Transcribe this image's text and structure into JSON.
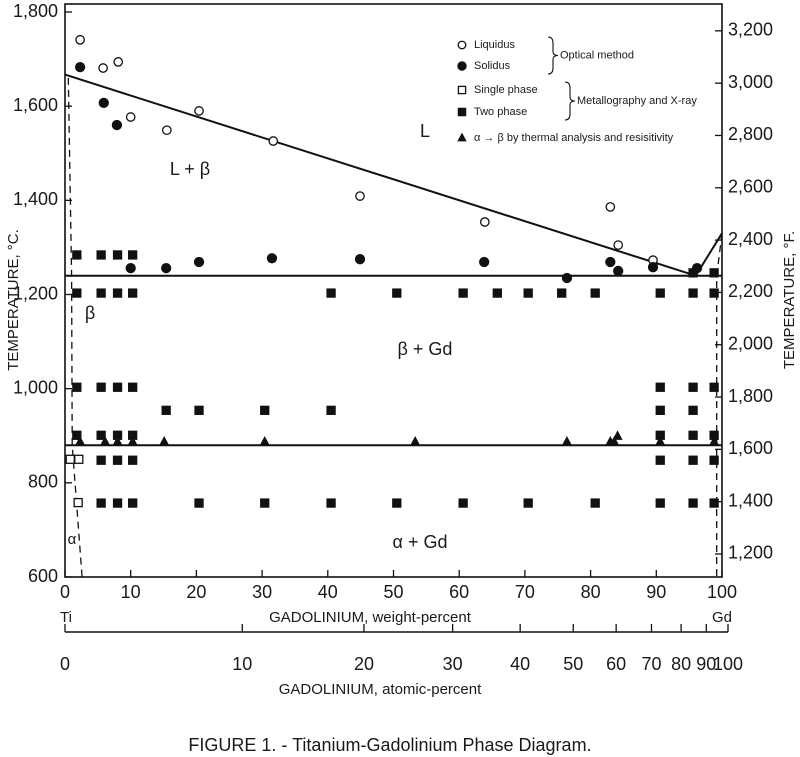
{
  "chart_data": {
    "type": "scatter",
    "title": "FIGURE 1. - Titanium-Gadolinium Phase Diagram.",
    "xlabel": "GADOLINIUM, weight-percent",
    "x2label": "GADOLINIUM, atomic-percent",
    "ylabel": "TEMPERATURE, °C.",
    "y2label": "TEMPERATURE, °F.",
    "x_end_labels": [
      "Ti",
      "Gd"
    ],
    "xlim": [
      0,
      100
    ],
    "xticks": [
      0,
      10,
      20,
      30,
      40,
      50,
      60,
      70,
      80,
      90,
      100
    ],
    "x2ticks": [
      0,
      10,
      20,
      30,
      40,
      50,
      60,
      70,
      80,
      90,
      100
    ],
    "ylim": [
      600,
      1800
    ],
    "yticks": [
      600,
      800,
      {
        "value": 1000,
        "label": "1,000"
      },
      {
        "value": 1200,
        "label": "1,200"
      },
      {
        "value": 1400,
        "label": "1,400"
      },
      {
        "value": 1600,
        "label": "1,600"
      },
      {
        "value": 1800,
        "label": "1,800"
      }
    ],
    "y2lim": [
      1112,
      3272
    ],
    "y2ticks": [
      {
        "value": 1200,
        "label": "1,200"
      },
      {
        "value": 1400,
        "label": "1,400"
      },
      {
        "value": 1600,
        "label": "1,600"
      },
      {
        "value": 1800,
        "label": "1,800"
      },
      {
        "value": 2000,
        "label": "2,000"
      },
      {
        "value": 2200,
        "label": "2,200"
      },
      {
        "value": 2400,
        "label": "2,400"
      },
      {
        "value": 2600,
        "label": "2,600"
      },
      {
        "value": 2800,
        "label": "2,800"
      },
      {
        "value": 3000,
        "label": "3,000"
      },
      {
        "value": 3200,
        "label": "3,200"
      }
    ],
    "color": "#111111",
    "groups": [
      {
        "label": "Optical method",
        "series": [
          {
            "name": "Liquidus",
            "marker": "open-circle",
            "x": [
              2.3,
              5.8,
              8.1,
              10,
              15.5,
              20.4,
              31.7,
              44.9,
              63.9,
              83,
              84.2,
              89.5
            ],
            "values": [
              1741,
              1681,
              1694,
              1577,
              1549,
              1590,
              1526,
              1409,
              1354,
              1386,
              1305,
              1273
            ]
          },
          {
            "name": "Solidus",
            "marker": "filled-circle",
            "x": [
              2.3,
              5.9,
              7.9,
              10,
              15.4,
              20.4,
              31.5,
              44.9,
              63.8,
              76.4,
              83,
              84.2,
              89.5,
              96.2
            ],
            "values": [
              1683,
              1607,
              1560,
              1256,
              1256,
              1269,
              1277,
              1275,
              1269,
              1235,
              1269,
              1250,
              1258,
              1256
            ]
          }
        ]
      },
      {
        "label": "Metallography and X-ray",
        "series": [
          {
            "name": "Single phase",
            "marker": "open-square",
            "x": [
              0.8,
              2.1,
              2
            ],
            "values": [
              850,
              850,
              758
            ]
          },
          {
            "name": "Two phase",
            "marker": "filled-square",
            "x": [
              1.8,
              5.5,
              8,
              10.3,
              1.8,
              5.5,
              8,
              10.3,
              40.5,
              50.5,
              60.6,
              65.8,
              70.5,
              75.6,
              80.7,
              90.6,
              95.6,
              98.8,
              95.6,
              98.8,
              1.8,
              5.5,
              8,
              10.3,
              90.6,
              95.6,
              98.8,
              15.4,
              20.4,
              30.4,
              40.5,
              90.6,
              95.6,
              1.8,
              5.5,
              8,
              10.3,
              90.6,
              95.6,
              98.8,
              5.5,
              8,
              10.3,
              90.6,
              95.6,
              98.8,
              5.5,
              8,
              10.3,
              20.4,
              30.4,
              40.5,
              50.5,
              60.6,
              70.5,
              80.7,
              90.6,
              95.6,
              98.8
            ],
            "values": [
              1284,
              1284,
              1284,
              1284,
              1203,
              1203,
              1203,
              1203,
              1203,
              1203,
              1203,
              1203,
              1203,
              1203,
              1203,
              1203,
              1203,
              1203,
              1246,
              1246,
              1003,
              1003,
              1003,
              1003,
              1003,
              1003,
              1003,
              954,
              954,
              954,
              954,
              954,
              954,
              901,
              901,
              901,
              901,
              901,
              901,
              901,
              848,
              848,
              848,
              848,
              848,
              848,
              757,
              757,
              757,
              757,
              757,
              757,
              757,
              757,
              757,
              757,
              757,
              757,
              757
            ]
          }
        ]
      },
      {
        "series": [
          {
            "name": "α → β by thermal analysis and resisitivity",
            "marker": "triangle",
            "x": [
              2.3,
              6.1,
              8,
              10.3,
              15.1,
              30.4,
              53.3,
              76.4,
              83,
              83.6,
              90.6,
              98.8,
              84.1
            ],
            "values": [
              887,
              887,
              887,
              887,
              887,
              887,
              887,
              887,
              887,
              887,
              887,
              887,
              899
            ]
          }
        ]
      }
    ],
    "boundaries": [
      {
        "x": [
          0,
          96
        ],
        "values": [
          1667,
          1240
        ],
        "dashed": false
      },
      {
        "x": [
          96,
          100
        ],
        "values": [
          1240,
          1330
        ],
        "dashed": false
      },
      {
        "x": [
          0,
          100
        ],
        "values": [
          1240,
          1240
        ],
        "dashed": false
      },
      {
        "x": [
          0,
          100
        ],
        "values": [
          880,
          880
        ],
        "dashed": false
      },
      {
        "x": [
          0.5,
          1,
          1.1,
          2.6
        ],
        "values": [
          1660,
          1240,
          880,
          600
        ],
        "dashed": true
      },
      {
        "x": [
          100,
          99.2,
          99.2
        ],
        "values": [
          1330,
          1240,
          600
        ],
        "dashed": true
      }
    ],
    "annotations": [
      "L",
      "L + β",
      "β",
      "β + Gd",
      "α + Gd",
      "α"
    ]
  }
}
